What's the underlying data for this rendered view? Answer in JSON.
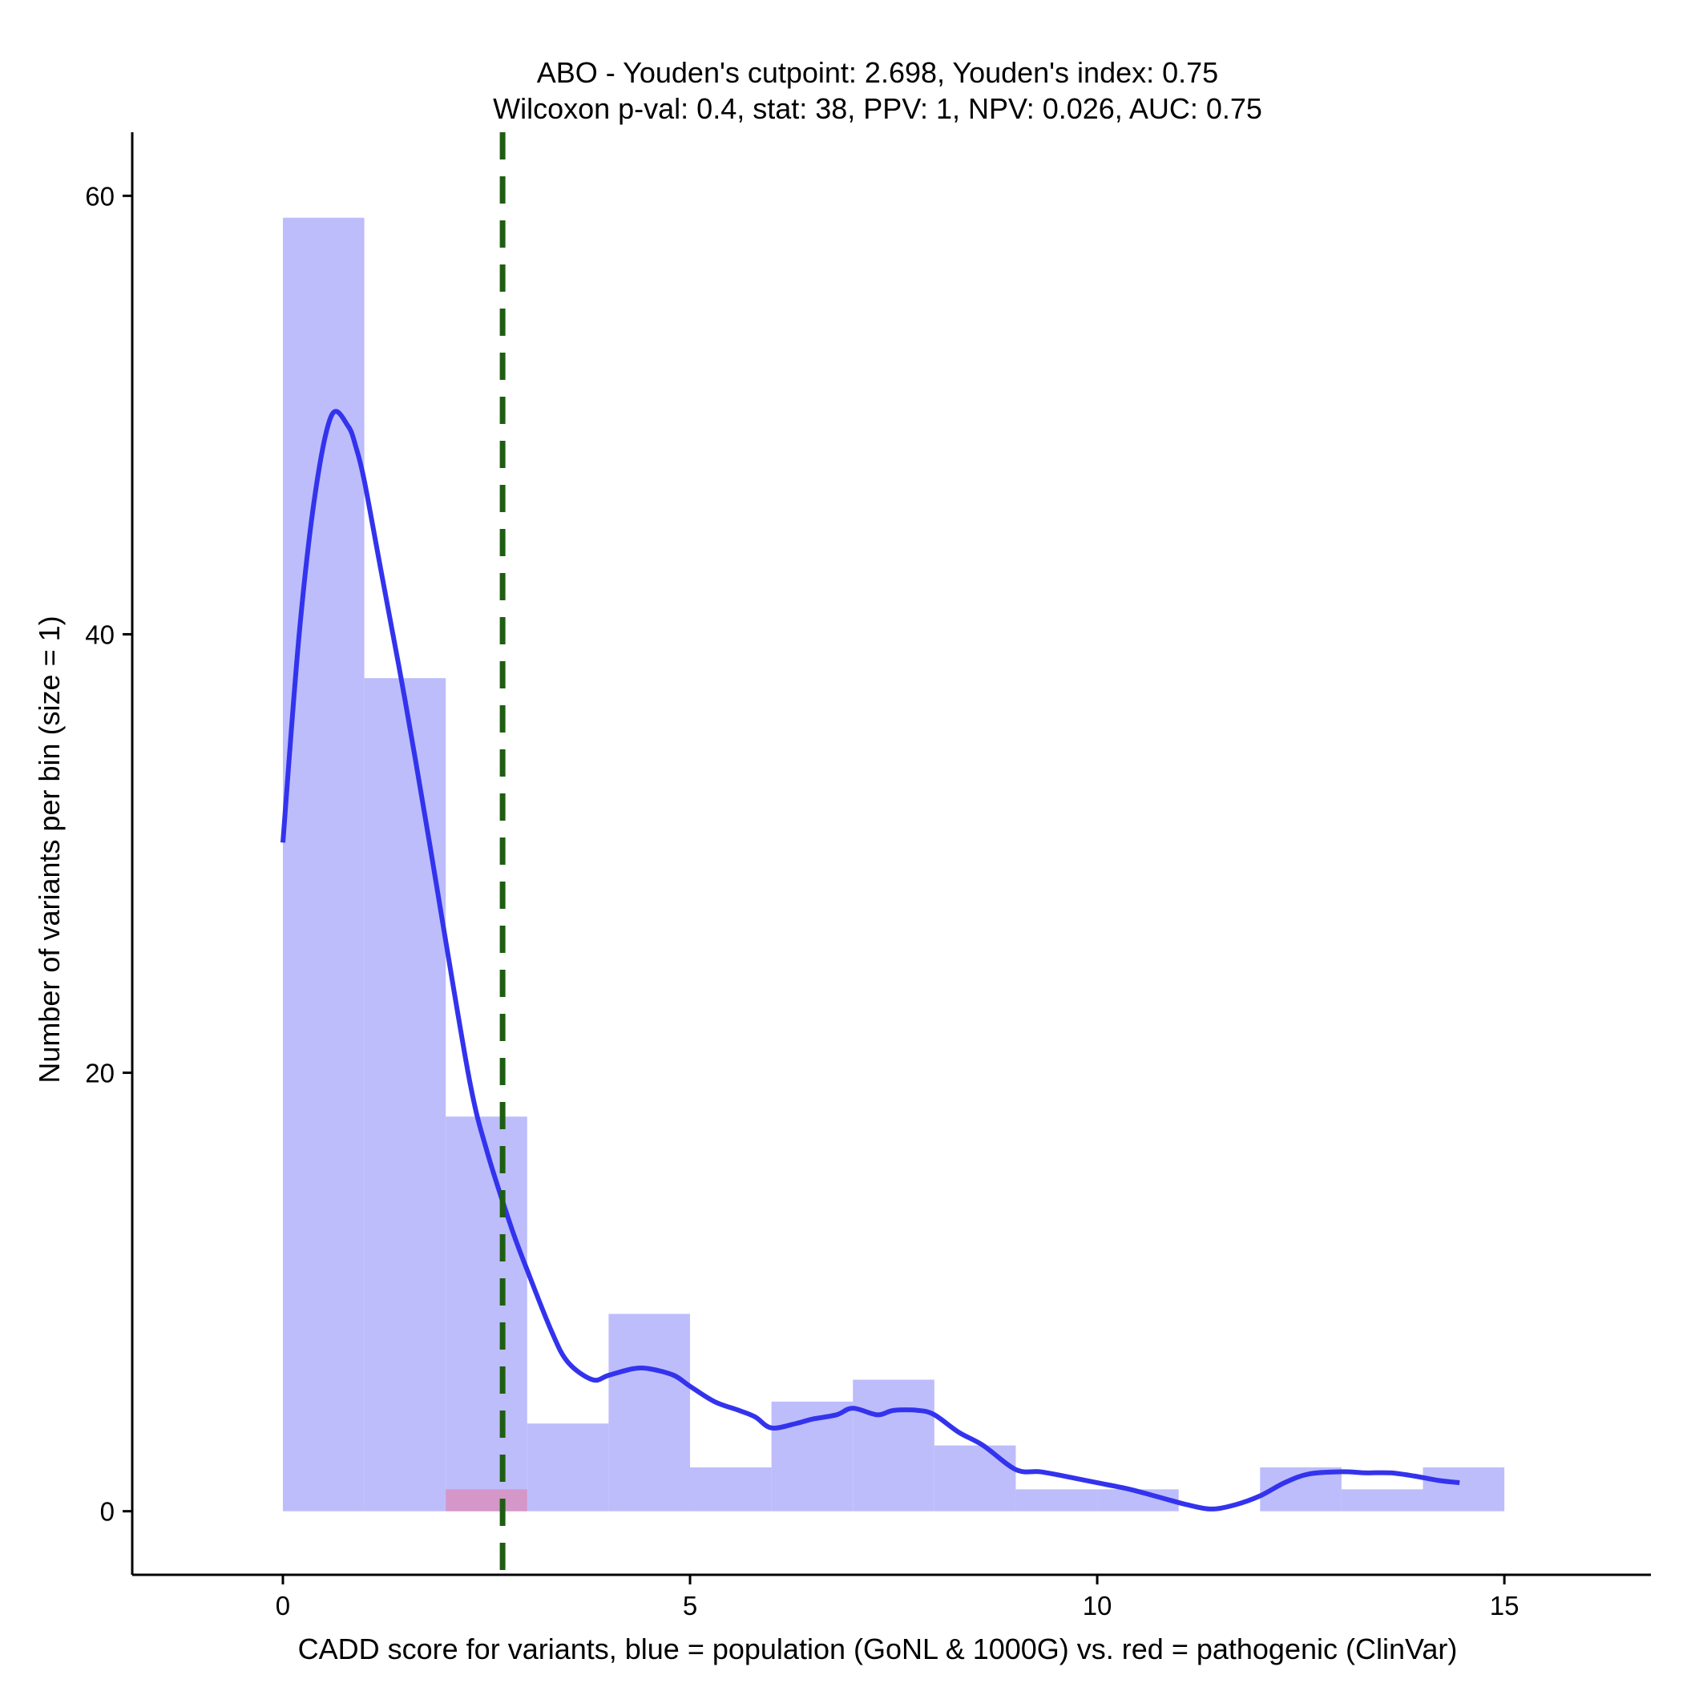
{
  "chart_data": {
    "type": "histogram",
    "title_line1": "ABO - Youden's cutpoint: 2.698, Youden's index: 0.75",
    "title_line2": "Wilcoxon p-val: 0.4, stat: 38, PPV: 1, NPV: 0.026, AUC: 0.75",
    "xlabel": "CADD score for variants, blue = population (GoNL & 1000G) vs. red = pathogenic (ClinVar)",
    "ylabel": "Number of variants per bin (size = 1)",
    "xlim": [
      -1.85,
      16.8
    ],
    "ylim": [
      -2.9,
      62.9
    ],
    "x_ticks": [
      0,
      5,
      10,
      15
    ],
    "x_tick_labels": [
      "0",
      "5",
      "10",
      "15"
    ],
    "y_ticks": [
      0,
      20,
      40,
      60
    ],
    "y_tick_labels": [
      "0",
      "20",
      "40",
      "60"
    ],
    "bin_width": 1,
    "series": [
      {
        "name": "population (GoNL & 1000G)",
        "color": "#bdbdfb",
        "bins": [
          {
            "start": 0,
            "count": 59
          },
          {
            "start": 1,
            "count": 38
          },
          {
            "start": 2,
            "count": 18
          },
          {
            "start": 3,
            "count": 4
          },
          {
            "start": 4,
            "count": 9
          },
          {
            "start": 5,
            "count": 2
          },
          {
            "start": 6,
            "count": 5
          },
          {
            "start": 7,
            "count": 6
          },
          {
            "start": 8,
            "count": 3
          },
          {
            "start": 9,
            "count": 1
          },
          {
            "start": 10,
            "count": 1
          },
          {
            "start": 11,
            "count": 0
          },
          {
            "start": 12,
            "count": 2
          },
          {
            "start": 13,
            "count": 1
          },
          {
            "start": 14,
            "count": 2
          }
        ]
      },
      {
        "name": "pathogenic (ClinVar)",
        "color": "#d497c8",
        "bins": [
          {
            "start": 2,
            "count": 1
          }
        ]
      }
    ],
    "density_curve": {
      "color": "#3333ee",
      "x": [
        0,
        0.2,
        0.4,
        0.6,
        0.8,
        0.9,
        1.0,
        1.2,
        1.5,
        1.8,
        2.0,
        2.3,
        2.5,
        2.8,
        3.0,
        3.3,
        3.5,
        3.8,
        4.0,
        4.3,
        4.5,
        4.8,
        5.0,
        5.3,
        5.6,
        5.8,
        6.0,
        6.3,
        6.5,
        6.8,
        7.0,
        7.3,
        7.5,
        7.8,
        8.0,
        8.3,
        8.6,
        9.0,
        9.3,
        9.6,
        10.0,
        10.4,
        10.8,
        11.1,
        11.4,
        11.7,
        12.0,
        12.3,
        12.6,
        13.0,
        13.3,
        13.6,
        13.9,
        14.2,
        14.45
      ],
      "y": [
        30.5,
        40.0,
        46.5,
        50.0,
        49.5,
        48.5,
        47.0,
        43.0,
        37.0,
        30.5,
        26.0,
        19.5,
        16.5,
        13.0,
        11.0,
        8.2,
        6.8,
        6.0,
        6.2,
        6.5,
        6.5,
        6.2,
        5.7,
        5.0,
        4.6,
        4.3,
        3.8,
        4.0,
        4.2,
        4.4,
        4.7,
        4.4,
        4.6,
        4.6,
        4.4,
        3.6,
        3.0,
        1.9,
        1.8,
        1.6,
        1.3,
        1.0,
        0.6,
        0.3,
        0.1,
        0.3,
        0.7,
        1.3,
        1.7,
        1.8,
        1.75,
        1.75,
        1.6,
        1.4,
        1.3
      ]
    },
    "cutpoint": {
      "x": 2.698,
      "color": "#1f5e12",
      "style": "dashed"
    }
  }
}
